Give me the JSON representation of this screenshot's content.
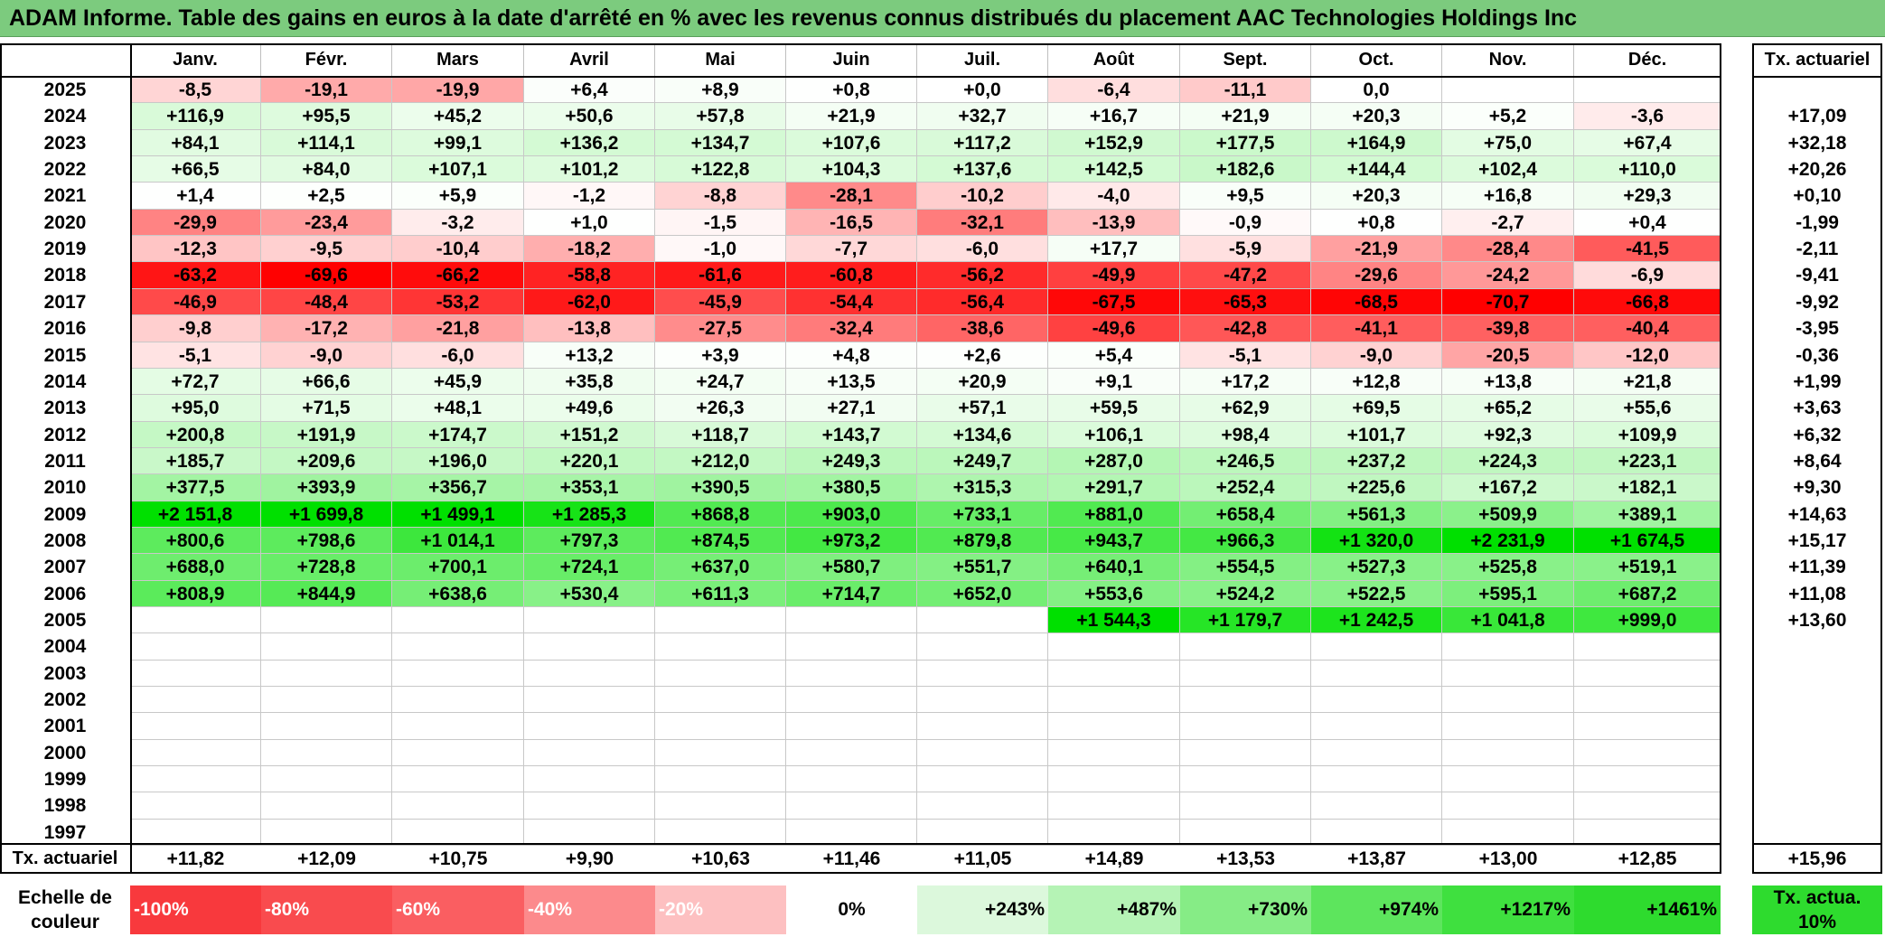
{
  "title": "ADAM Informe. Table des gains en euros à la date d'arrêté en % avec les revenus connus distribués du placement AAC Technologies Holdings Inc",
  "months": [
    "Janv.",
    "Févr.",
    "Mars",
    "Avril",
    "Mai",
    "Juin",
    "Juil.",
    "Août",
    "Sept.",
    "Oct.",
    "Nov.",
    "Déc."
  ],
  "rate_header": "Tx. actuariel",
  "rows": [
    {
      "year": "2025",
      "values": [
        "-8,5",
        "-19,1",
        "-19,9",
        "+6,4",
        "+8,9",
        "+0,8",
        "+0,0",
        "-6,4",
        "-11,1",
        "0,0",
        "",
        ""
      ],
      "rate": ""
    },
    {
      "year": "2024",
      "values": [
        "+116,9",
        "+95,5",
        "+45,2",
        "+50,6",
        "+57,8",
        "+21,9",
        "+32,7",
        "+16,7",
        "+21,9",
        "+20,3",
        "+5,2",
        "-3,6"
      ],
      "rate": "+17,09"
    },
    {
      "year": "2023",
      "values": [
        "+84,1",
        "+114,1",
        "+99,1",
        "+136,2",
        "+134,7",
        "+107,6",
        "+117,2",
        "+152,9",
        "+177,5",
        "+164,9",
        "+75,0",
        "+67,4"
      ],
      "rate": "+32,18"
    },
    {
      "year": "2022",
      "values": [
        "+66,5",
        "+84,0",
        "+107,1",
        "+101,2",
        "+122,8",
        "+104,3",
        "+137,6",
        "+142,5",
        "+182,6",
        "+144,4",
        "+102,4",
        "+110,0"
      ],
      "rate": "+20,26"
    },
    {
      "year": "2021",
      "values": [
        "+1,4",
        "+2,5",
        "+5,9",
        "-1,2",
        "-8,8",
        "-28,1",
        "-10,2",
        "-4,0",
        "+9,5",
        "+20,3",
        "+16,8",
        "+29,3"
      ],
      "rate": "+0,10"
    },
    {
      "year": "2020",
      "values": [
        "-29,9",
        "-23,4",
        "-3,2",
        "+1,0",
        "-1,5",
        "-16,5",
        "-32,1",
        "-13,9",
        "-0,9",
        "+0,8",
        "-2,7",
        "+0,4"
      ],
      "rate": "-1,99"
    },
    {
      "year": "2019",
      "values": [
        "-12,3",
        "-9,5",
        "-10,4",
        "-18,2",
        "-1,0",
        "-7,7",
        "-6,0",
        "+17,7",
        "-5,9",
        "-21,9",
        "-28,4",
        "-41,5"
      ],
      "rate": "-2,11"
    },
    {
      "year": "2018",
      "values": [
        "-63,2",
        "-69,6",
        "-66,2",
        "-58,8",
        "-61,6",
        "-60,8",
        "-56,2",
        "-49,9",
        "-47,2",
        "-29,6",
        "-24,2",
        "-6,9"
      ],
      "rate": "-9,41"
    },
    {
      "year": "2017",
      "values": [
        "-46,9",
        "-48,4",
        "-53,2",
        "-62,0",
        "-45,9",
        "-54,4",
        "-56,4",
        "-67,5",
        "-65,3",
        "-68,5",
        "-70,7",
        "-66,8"
      ],
      "rate": "-9,92"
    },
    {
      "year": "2016",
      "values": [
        "-9,8",
        "-17,2",
        "-21,8",
        "-13,8",
        "-27,5",
        "-32,4",
        "-38,6",
        "-49,6",
        "-42,8",
        "-41,1",
        "-39,8",
        "-40,4"
      ],
      "rate": "-3,95"
    },
    {
      "year": "2015",
      "values": [
        "-5,1",
        "-9,0",
        "-6,0",
        "+13,2",
        "+3,9",
        "+4,8",
        "+2,6",
        "+5,4",
        "-5,1",
        "-9,0",
        "-20,5",
        "-12,0"
      ],
      "rate": "-0,36"
    },
    {
      "year": "2014",
      "values": [
        "+72,7",
        "+66,6",
        "+45,9",
        "+35,8",
        "+24,7",
        "+13,5",
        "+20,9",
        "+9,1",
        "+17,2",
        "+12,8",
        "+13,8",
        "+21,8"
      ],
      "rate": "+1,99"
    },
    {
      "year": "2013",
      "values": [
        "+95,0",
        "+71,5",
        "+48,1",
        "+49,6",
        "+26,3",
        "+27,1",
        "+57,1",
        "+59,5",
        "+62,9",
        "+69,5",
        "+65,2",
        "+55,6"
      ],
      "rate": "+3,63"
    },
    {
      "year": "2012",
      "values": [
        "+200,8",
        "+191,9",
        "+174,7",
        "+151,2",
        "+118,7",
        "+143,7",
        "+134,6",
        "+106,1",
        "+98,4",
        "+101,7",
        "+92,3",
        "+109,9"
      ],
      "rate": "+6,32"
    },
    {
      "year": "2011",
      "values": [
        "+185,7",
        "+209,6",
        "+196,0",
        "+220,1",
        "+212,0",
        "+249,3",
        "+249,7",
        "+287,0",
        "+246,5",
        "+237,2",
        "+224,3",
        "+223,1"
      ],
      "rate": "+8,64"
    },
    {
      "year": "2010",
      "values": [
        "+377,5",
        "+393,9",
        "+356,7",
        "+353,1",
        "+390,5",
        "+380,5",
        "+315,3",
        "+291,7",
        "+252,4",
        "+225,6",
        "+167,2",
        "+182,1"
      ],
      "rate": "+9,30"
    },
    {
      "year": "2009",
      "values": [
        "+2 151,8",
        "+1 699,8",
        "+1 499,1",
        "+1 285,3",
        "+868,8",
        "+903,0",
        "+733,1",
        "+881,0",
        "+658,4",
        "+561,3",
        "+509,9",
        "+389,1"
      ],
      "rate": "+14,63"
    },
    {
      "year": "2008",
      "values": [
        "+800,6",
        "+798,6",
        "+1 014,1",
        "+797,3",
        "+874,5",
        "+973,2",
        "+879,8",
        "+943,7",
        "+966,3",
        "+1 320,0",
        "+2 231,9",
        "+1 674,5"
      ],
      "rate": "+15,17"
    },
    {
      "year": "2007",
      "values": [
        "+688,0",
        "+728,8",
        "+700,1",
        "+724,1",
        "+637,0",
        "+580,7",
        "+551,7",
        "+640,1",
        "+554,5",
        "+527,3",
        "+525,8",
        "+519,1"
      ],
      "rate": "+11,39"
    },
    {
      "year": "2006",
      "values": [
        "+808,9",
        "+844,9",
        "+638,6",
        "+530,4",
        "+611,3",
        "+714,7",
        "+652,0",
        "+553,6",
        "+524,2",
        "+522,5",
        "+595,1",
        "+687,2"
      ],
      "rate": "+11,08"
    },
    {
      "year": "2005",
      "values": [
        "",
        "",
        "",
        "",
        "",
        "",
        "",
        "+1 544,3",
        "+1 179,7",
        "+1 242,5",
        "+1 041,8",
        "+999,0"
      ],
      "rate": "+13,60"
    },
    {
      "year": "2004",
      "values": [
        "",
        "",
        "",
        "",
        "",
        "",
        "",
        "",
        "",
        "",
        "",
        ""
      ],
      "rate": ""
    },
    {
      "year": "2003",
      "values": [
        "",
        "",
        "",
        "",
        "",
        "",
        "",
        "",
        "",
        "",
        "",
        ""
      ],
      "rate": ""
    },
    {
      "year": "2002",
      "values": [
        "",
        "",
        "",
        "",
        "",
        "",
        "",
        "",
        "",
        "",
        "",
        ""
      ],
      "rate": ""
    },
    {
      "year": "2001",
      "values": [
        "",
        "",
        "",
        "",
        "",
        "",
        "",
        "",
        "",
        "",
        "",
        ""
      ],
      "rate": ""
    },
    {
      "year": "2000",
      "values": [
        "",
        "",
        "",
        "",
        "",
        "",
        "",
        "",
        "",
        "",
        "",
        ""
      ],
      "rate": ""
    },
    {
      "year": "1999",
      "values": [
        "",
        "",
        "",
        "",
        "",
        "",
        "",
        "",
        "",
        "",
        "",
        ""
      ],
      "rate": ""
    },
    {
      "year": "1998",
      "values": [
        "",
        "",
        "",
        "",
        "",
        "",
        "",
        "",
        "",
        "",
        "",
        ""
      ],
      "rate": ""
    },
    {
      "year": "1997",
      "values": [
        "",
        "",
        "",
        "",
        "",
        "",
        "",
        "",
        "",
        "",
        "",
        ""
      ],
      "rate": ""
    }
  ],
  "footer": {
    "label": "Tx. actuariel",
    "values": [
      "+11,82",
      "+12,09",
      "+10,75",
      "+9,90",
      "+10,63",
      "+11,46",
      "+11,05",
      "+14,89",
      "+13,53",
      "+13,87",
      "+13,00",
      "+12,85"
    ],
    "total": "+15,96"
  },
  "scale": {
    "label": "Echelle de couleur",
    "steps": [
      {
        "text": "-100%",
        "color": "#F8393D",
        "align": "left"
      },
      {
        "text": "-80%",
        "color": "#F94B4E",
        "align": "left"
      },
      {
        "text": "-60%",
        "color": "#FA5E61",
        "align": "left"
      },
      {
        "text": "-40%",
        "color": "#FC8A8C",
        "align": "left"
      },
      {
        "text": "-20%",
        "color": "#FDC0C1",
        "align": "left"
      },
      {
        "text": "0%",
        "color": "#FFFFFF",
        "align": "center"
      },
      {
        "text": "+243%",
        "color": "#DCF8DC",
        "align": "right"
      },
      {
        "text": "+487%",
        "color": "#B5F3B5",
        "align": "right"
      },
      {
        "text": "+730%",
        "color": "#86EC86",
        "align": "right"
      },
      {
        "text": "+974%",
        "color": "#5DE55D",
        "align": "right"
      },
      {
        "text": "+1217%",
        "color": "#3FE03F",
        "align": "right"
      },
      {
        "text": "+1461%",
        "color": "#2EDB2E",
        "align": "right"
      }
    ],
    "rate_box": {
      "text": "Tx. actua. 10%",
      "color": "#2EDB2E"
    }
  },
  "colors": {
    "title_bg": "#7CCB7E",
    "negative_max": "#FF0000",
    "positive_max": "#00E000"
  }
}
